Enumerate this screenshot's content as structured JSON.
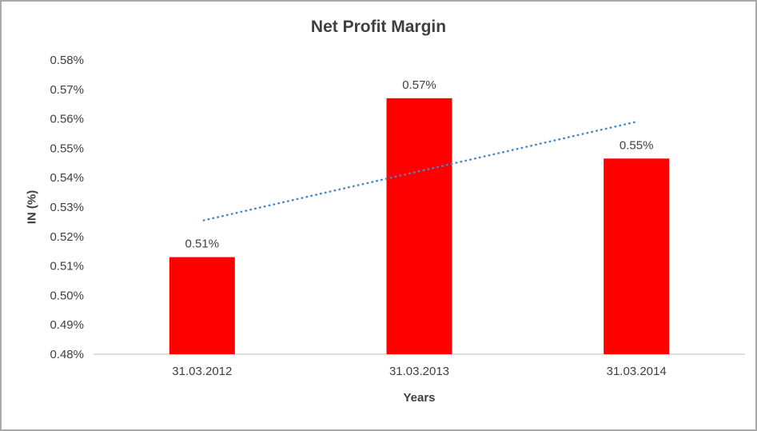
{
  "chart_data": {
    "type": "bar",
    "title": "Net Profit Margin",
    "xlabel": "Years",
    "ylabel": "IN (%)",
    "categories": [
      "31.03.2012",
      "31.03.2013",
      "31.03.2014"
    ],
    "values": [
      0.513,
      0.567,
      0.5465
    ],
    "data_labels": [
      "0.51%",
      "0.57%",
      "0.55%"
    ],
    "ylim": [
      0.48,
      0.58
    ],
    "ytick_labels": [
      "0.48%",
      "0.49%",
      "0.50%",
      "0.51%",
      "0.52%",
      "0.53%",
      "0.54%",
      "0.55%",
      "0.56%",
      "0.57%",
      "0.58%"
    ],
    "bar_color": "#ff0000",
    "axis_line_color": "#bfbfbf",
    "text_color": "#3f3f3f",
    "trendline": {
      "style": "dotted",
      "color": "#4a86c5",
      "start_value": 0.5255,
      "end_value": 0.559
    },
    "legend": "none",
    "grid": false
  }
}
